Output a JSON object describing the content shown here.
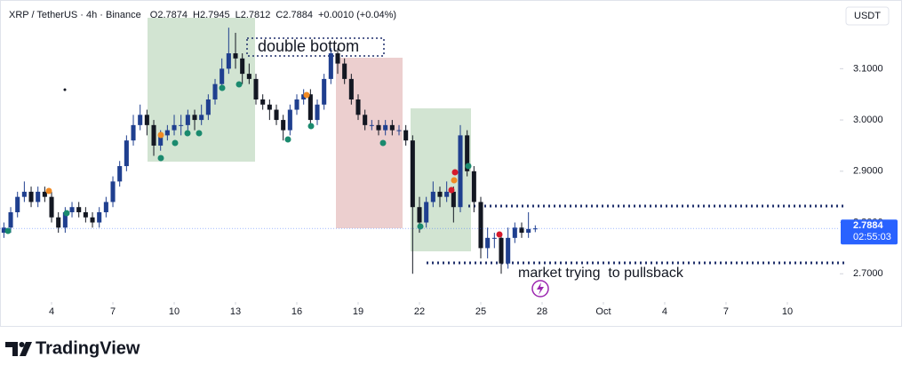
{
  "chart_data": {
    "type": "candlestick",
    "symbol": "XRP / TetherUS · 4h · Binance",
    "ohlc_labels": [
      "O",
      "H",
      "L",
      "C"
    ],
    "change": "+0.0010 (+0.04%)",
    "currency": "USDT",
    "countdown": "02:55:03",
    "annotations": [
      "double bottom",
      "market trying  to pullsback"
    ],
    "up_color": "#1f3f8f",
    "down_color": "#131722",
    "last_price_color": "#2962ff",
    "grid": false,
    "categories": [
      null,
      null,
      null,
      null,
      null,
      null,
      null,
      null,
      null,
      null,
      null,
      null,
      null,
      null,
      null,
      null,
      null,
      null,
      null,
      null,
      null,
      null,
      null,
      null,
      null,
      null,
      null,
      null,
      null,
      null,
      null,
      null,
      null,
      null,
      null,
      null,
      null,
      null,
      null,
      null,
      null,
      null,
      null,
      null,
      null,
      null,
      null,
      null,
      null,
      null,
      null,
      null,
      null,
      null,
      null,
      null,
      null,
      null,
      null,
      null,
      null,
      null,
      null,
      null,
      null,
      null,
      null,
      null,
      null,
      null,
      null,
      null,
      null,
      null,
      null,
      null,
      null,
      null,
      null
    ],
    "open": [
      2.78,
      2.79,
      2.82,
      2.85,
      2.86,
      2.84,
      2.86,
      2.85,
      2.81,
      2.79,
      2.82,
      2.83,
      2.82,
      2.81,
      2.8,
      2.82,
      2.84,
      2.88,
      2.91,
      2.96,
      2.99,
      3.01,
      2.99,
      2.95,
      2.97,
      2.98,
      2.99,
      2.99,
      3.01,
      3.0,
      3.01,
      3.04,
      3.07,
      3.1,
      3.13,
      3.12,
      3.09,
      3.08,
      3.04,
      3.03,
      3.02,
      3.0,
      2.98,
      3.02,
      3.04,
      3.05,
      3.0,
      3.03,
      3.08,
      3.13,
      3.11,
      3.08,
      3.04,
      3.01,
      2.99,
      2.99,
      2.98,
      2.99,
      2.98,
      2.98,
      2.96,
      2.83,
      2.8,
      2.84,
      2.86,
      2.85,
      2.86,
      2.83,
      2.97,
      2.9,
      2.84,
      2.75,
      2.77,
      2.77,
      2.72,
      2.77,
      2.79,
      2.78,
      2.7874
    ],
    "high": [
      2.8,
      2.83,
      2.86,
      2.88,
      2.87,
      2.87,
      2.87,
      2.86,
      2.82,
      2.83,
      2.84,
      2.84,
      2.83,
      2.82,
      2.83,
      2.85,
      2.89,
      2.92,
      2.97,
      3.01,
      3.03,
      3.02,
      3.0,
      2.98,
      2.99,
      3.01,
      3.01,
      3.02,
      3.02,
      3.03,
      3.05,
      3.08,
      3.12,
      3.18,
      3.17,
      3.13,
      3.11,
      3.09,
      3.05,
      3.04,
      3.03,
      3.01,
      3.03,
      3.05,
      3.06,
      3.06,
      3.04,
      3.09,
      3.14,
      3.14,
      3.12,
      3.09,
      3.05,
      3.02,
      3.0,
      3.0,
      3.0,
      3.0,
      2.99,
      2.99,
      2.97,
      2.85,
      2.85,
      2.88,
      2.87,
      2.88,
      2.87,
      2.99,
      2.98,
      2.91,
      2.85,
      2.79,
      2.78,
      2.78,
      2.79,
      2.8,
      2.8,
      2.82,
      2.7945
    ],
    "low": [
      2.77,
      2.78,
      2.81,
      2.84,
      2.83,
      2.83,
      2.84,
      2.8,
      2.78,
      2.78,
      2.81,
      2.81,
      2.8,
      2.79,
      2.79,
      2.81,
      2.83,
      2.87,
      2.9,
      2.95,
      2.98,
      2.97,
      2.93,
      2.94,
      2.96,
      2.97,
      2.97,
      2.98,
      2.98,
      2.99,
      3.0,
      3.03,
      3.06,
      3.09,
      3.1,
      3.07,
      3.07,
      3.03,
      3.02,
      3.0,
      2.99,
      2.96,
      2.97,
      3.01,
      3.03,
      2.99,
      2.99,
      3.02,
      3.07,
      3.09,
      3.07,
      3.03,
      3.0,
      2.98,
      2.98,
      2.97,
      2.97,
      2.97,
      2.97,
      2.95,
      2.7,
      2.78,
      2.79,
      2.83,
      2.83,
      2.84,
      2.8,
      2.82,
      2.89,
      2.82,
      2.73,
      2.73,
      2.75,
      2.7,
      2.71,
      2.76,
      2.77,
      2.77,
      2.7812
    ],
    "close": [
      2.79,
      2.82,
      2.85,
      2.86,
      2.84,
      2.86,
      2.85,
      2.81,
      2.79,
      2.82,
      2.83,
      2.82,
      2.81,
      2.8,
      2.82,
      2.84,
      2.88,
      2.91,
      2.96,
      2.99,
      3.01,
      2.99,
      2.95,
      2.97,
      2.98,
      2.99,
      2.99,
      3.01,
      3.0,
      3.01,
      3.04,
      3.07,
      3.1,
      3.13,
      3.12,
      3.09,
      3.08,
      3.04,
      3.03,
      3.02,
      3.0,
      2.98,
      3.02,
      3.04,
      3.05,
      3.0,
      3.03,
      3.08,
      3.13,
      3.11,
      3.08,
      3.04,
      3.01,
      2.99,
      2.99,
      2.98,
      2.99,
      2.98,
      2.98,
      2.96,
      2.83,
      2.8,
      2.84,
      2.86,
      2.85,
      2.86,
      2.83,
      2.97,
      2.9,
      2.84,
      2.75,
      2.77,
      2.77,
      2.72,
      2.77,
      2.79,
      2.78,
      2.7874,
      2.7884
    ],
    "ylim": [
      2.645,
      3.234
    ],
    "yticks": [
      {
        "value": 2.7,
        "label": "2.7000"
      },
      {
        "value": 2.8,
        "label": "2.8000"
      },
      {
        "value": 2.9,
        "label": "2.9000"
      },
      {
        "value": 3.0,
        "label": "3.0000"
      },
      {
        "value": 3.1,
        "label": "3.1000"
      }
    ],
    "xlim": [
      -0.57,
      122.7
    ],
    "xticks": [
      {
        "value": 7,
        "label": "4"
      },
      {
        "value": 16,
        "label": "7"
      },
      {
        "value": 25,
        "label": "10"
      },
      {
        "value": 34,
        "label": "13"
      },
      {
        "value": 43,
        "label": "16"
      },
      {
        "value": 52,
        "label": "19"
      },
      {
        "value": 61,
        "label": "22"
      },
      {
        "value": 70,
        "label": "25"
      },
      {
        "value": 79,
        "label": "28"
      },
      {
        "value": 88,
        "label": "Oct"
      },
      {
        "value": 97,
        "label": "4"
      },
      {
        "value": 106,
        "label": "7"
      },
      {
        "value": 115,
        "label": "10"
      }
    ]
  },
  "brand": "TradingView"
}
